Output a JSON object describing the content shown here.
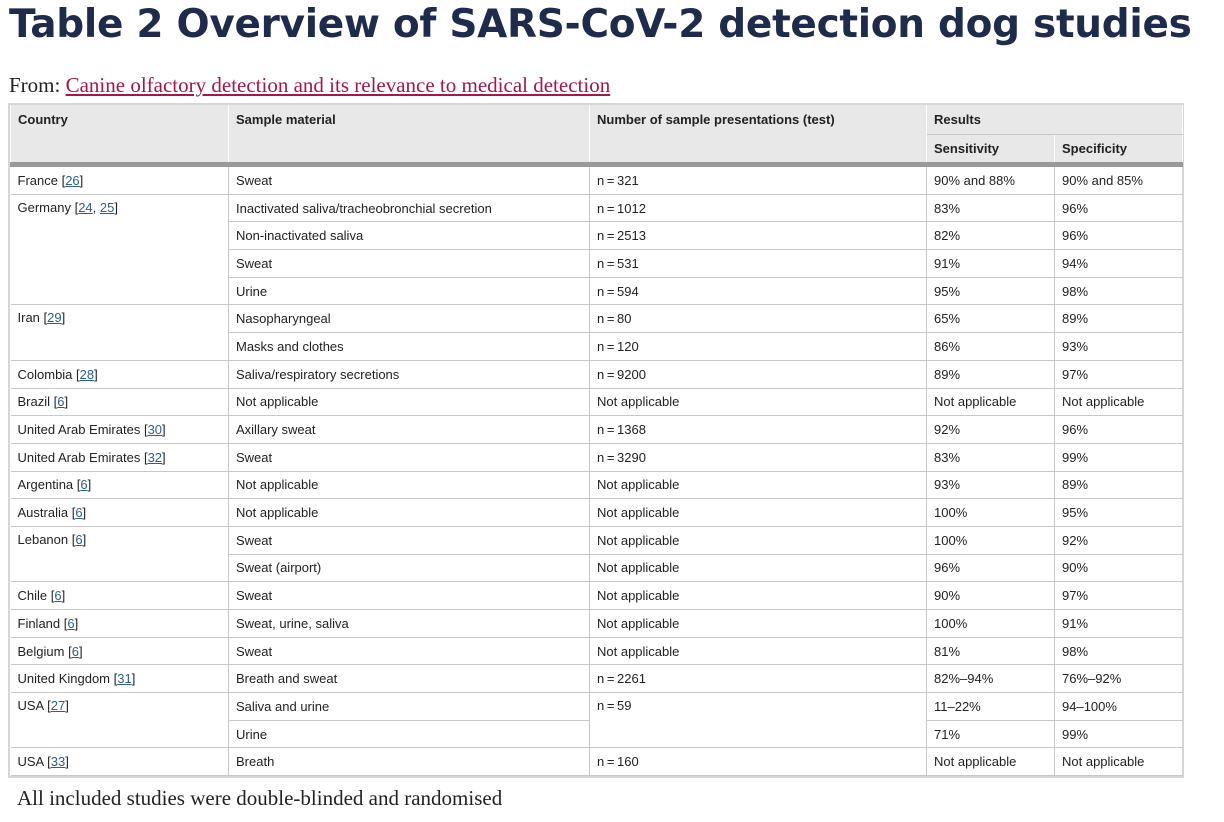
{
  "title": "Table 2 Overview of SARS-CoV-2 detection dog studies",
  "from_label": "From:",
  "from_link": "Canine olfactory detection and its relevance to medical detection",
  "headers": {
    "country": "Country",
    "sample": "Sample material",
    "n": "Number of sample presentations (test)",
    "results": "Results",
    "sensitivity": "Sensitivity",
    "specificity": "Specificity"
  },
  "rows": [
    {
      "country": "France",
      "refs": [
        "26"
      ],
      "sample": "Sweat",
      "n": "n = 321",
      "sens": "90% and 88%",
      "spec": "90% and 85%"
    },
    {
      "country": "Germany",
      "refs": [
        "24",
        "25"
      ],
      "sample": "Inactivated saliva/tracheobronchial secretion",
      "n": "n = 1012",
      "sens": "83%",
      "spec": "96%"
    },
    {
      "sample": "Non-inactivated saliva",
      "n": "n = 2513",
      "sens": "82%",
      "spec": "96%"
    },
    {
      "sample": "Sweat",
      "n": "n = 531",
      "sens": "91%",
      "spec": "94%"
    },
    {
      "sample": "Urine",
      "n": "n = 594",
      "sens": "95%",
      "spec": "98%"
    },
    {
      "country": "Iran",
      "refs": [
        "29"
      ],
      "sample": "Nasopharyngeal",
      "n": "n = 80",
      "sens": "65%",
      "spec": "89%"
    },
    {
      "sample": "Masks and clothes",
      "n": "n = 120",
      "sens": "86%",
      "spec": "93%"
    },
    {
      "country": "Colombia",
      "refs": [
        "28"
      ],
      "sample": "Saliva/respiratory secretions",
      "n": "n = 9200",
      "sens": "89%",
      "spec": "97%"
    },
    {
      "country": "Brazil",
      "refs": [
        "6"
      ],
      "sample": "Not applicable",
      "n": "Not applicable",
      "sens": "Not applicable",
      "spec": "Not applicable"
    },
    {
      "country": "United Arab Emirates",
      "refs": [
        "30"
      ],
      "sample": "Axillary sweat",
      "n": "n = 1368",
      "sens": "92%",
      "spec": "96%"
    },
    {
      "country": "United Arab Emirates",
      "refs": [
        "32"
      ],
      "sample": "Sweat",
      "n": "n = 3290",
      "sens": "83%",
      "spec": "99%"
    },
    {
      "country": "Argentina",
      "refs": [
        "6"
      ],
      "sample": "Not applicable",
      "n": "Not applicable",
      "sens": "93%",
      "spec": "89%"
    },
    {
      "country": "Australia",
      "refs": [
        "6"
      ],
      "sample": "Not applicable",
      "n": "Not applicable",
      "sens": "100%",
      "spec": "95%"
    },
    {
      "country": "Lebanon",
      "refs": [
        "6"
      ],
      "sample": "Sweat",
      "n": "Not applicable",
      "sens": "100%",
      "spec": "92%"
    },
    {
      "sample": "Sweat (airport)",
      "n": "Not applicable",
      "sens": "96%",
      "spec": "90%"
    },
    {
      "country": "Chile",
      "refs": [
        "6"
      ],
      "sample": "Sweat",
      "n": "Not applicable",
      "sens": "90%",
      "spec": "97%"
    },
    {
      "country": "Finland",
      "refs": [
        "6"
      ],
      "sample": "Sweat, urine, saliva",
      "n": "Not applicable",
      "sens": "100%",
      "spec": "91%"
    },
    {
      "country": "Belgium",
      "refs": [
        "6"
      ],
      "sample": "Sweat",
      "n": "Not applicable",
      "sens": "81%",
      "spec": "98%"
    },
    {
      "country": "United Kingdom",
      "refs": [
        "31"
      ],
      "sample": "Breath and sweat",
      "n": "n = 2261",
      "sens": "82%–94%",
      "spec": "76%–92%"
    },
    {
      "country": "USA",
      "refs": [
        "27"
      ],
      "sample": "Saliva and urine",
      "n": "n = 59",
      "sens": "11–22%",
      "spec": "94–100%"
    },
    {
      "sample": "Urine",
      "sens": "71%",
      "spec": "99%"
    },
    {
      "country": "USA",
      "refs": [
        "33"
      ],
      "sample": "Breath",
      "n": "n = 160",
      "sens": "Not applicable",
      "spec": "Not applicable"
    }
  ],
  "footnote": "All included studies were double-blinded and randomised"
}
